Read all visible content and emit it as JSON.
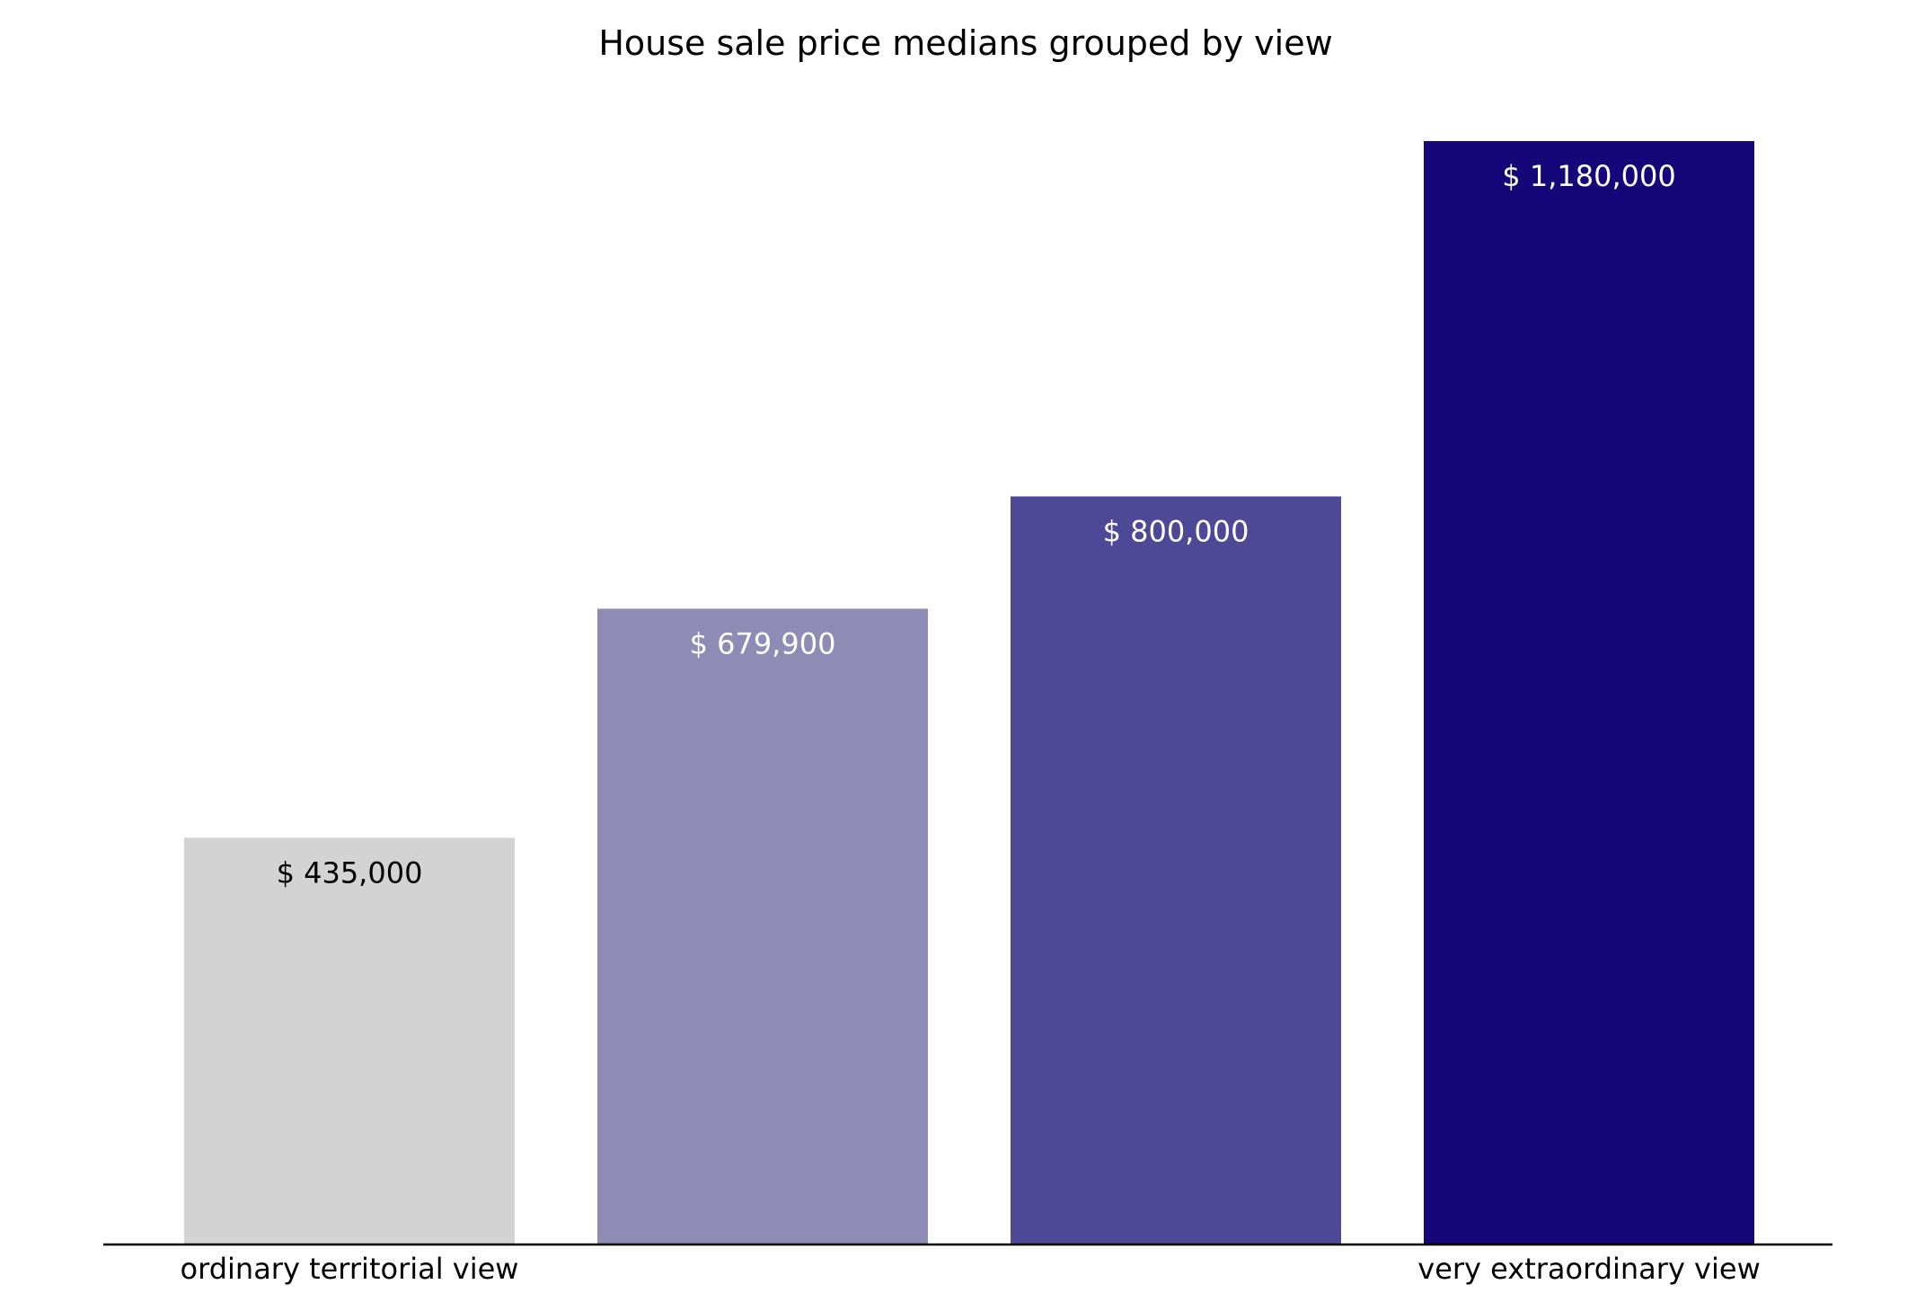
{
  "chart_data": {
    "type": "bar",
    "title": "House sale price medians grouped by view",
    "xlabel": "",
    "ylabel": "",
    "categories": [
      "ordinary territorial view",
      "",
      "",
      "very extraordinary view"
    ],
    "values": [
      435000,
      679900,
      800000,
      1180000
    ],
    "data_labels": [
      "$ 435,000",
      "$ 679,900",
      "$ 800,000",
      "$ 1,180,000"
    ],
    "bar_colors": [
      "#d3d3d3",
      "#8e8cb4",
      "#4e4996",
      "#150679"
    ],
    "label_colors": [
      "#000000",
      "#ffffff",
      "#ffffff",
      "#ffffff"
    ],
    "ylim": [
      0,
      1180000
    ],
    "grid": false,
    "legend": "none"
  }
}
